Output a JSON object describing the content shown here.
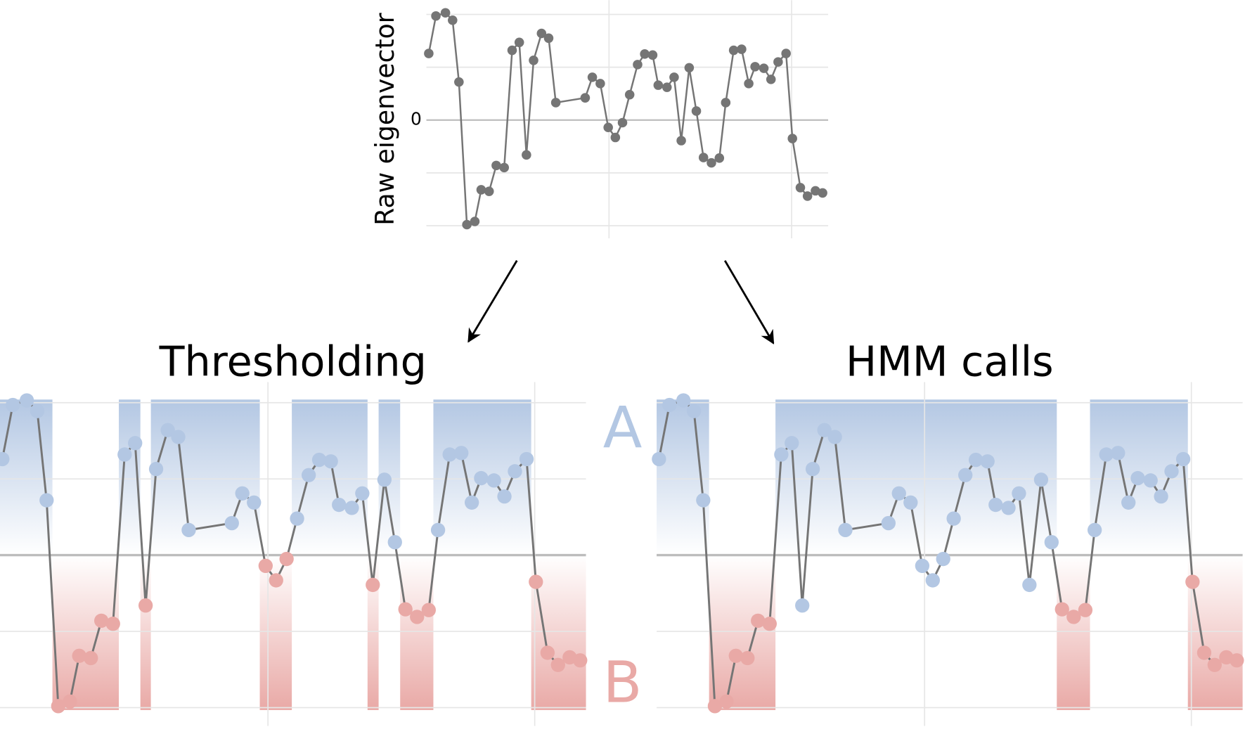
{
  "chart_data": [
    {
      "type": "line",
      "y_label": "Raw eigenvector",
      "color": "#757575",
      "x": [
        0.3,
        1.2,
        2.4,
        3.3,
        4.1,
        5.1,
        6.1,
        6.9,
        7.9,
        8.8,
        9.8,
        10.8,
        11.7,
        12.6,
        13.5,
        14.5,
        15.4,
        16.3,
        20,
        20.9,
        21.9,
        22.9,
        23.8,
        24.7,
        25.6,
        26.6,
        27.5,
        28.5,
        29.2,
        30.3,
        31.2,
        32.1,
        33.1,
        34,
        34.9,
        35.9,
        36.9,
        37.7,
        38.7,
        39.7,
        40.6,
        41.4,
        42.5,
        43.4,
        44.3,
        45.3,
        46.1,
        47.1,
        48,
        49,
        49.9
      ],
      "values": [
        1.26,
        1.97,
        2.03,
        1.89,
        0.72,
        -1.98,
        -1.92,
        -1.32,
        -1.35,
        -0.86,
        -0.9,
        1.32,
        1.47,
        -0.66,
        1.13,
        1.64,
        1.55,
        0.33,
        0.42,
        0.81,
        0.69,
        -0.14,
        -0.33,
        -0.05,
        0.48,
        1.05,
        1.25,
        1.23,
        0.66,
        0.62,
        0.81,
        -0.39,
        0.99,
        0.17,
        -0.71,
        -0.81,
        -0.72,
        0.33,
        1.32,
        1.34,
        0.69,
        1.01,
        0.98,
        0.77,
        1.1,
        1.26,
        -0.35,
        -1.28,
        -1.44,
        -1.34,
        -1.38
      ],
      "xlim": [
        0,
        50.6
      ],
      "ylim": [
        -2.24,
        2.27
      ],
      "yticks": [
        0
      ],
      "ygrid": [
        -2,
        -1,
        1,
        2
      ],
      "xgrid": [
        23,
        46
      ],
      "grid": true
    },
    {
      "type": "line",
      "title": "Thresholding",
      "color": "#757575",
      "legend": "right",
      "x": [
        0.3,
        1.2,
        2.4,
        3.3,
        4.1,
        5.1,
        6.1,
        6.9,
        7.9,
        8.8,
        9.8,
        10.8,
        11.7,
        12.6,
        13.5,
        14.5,
        15.4,
        16.3,
        20,
        20.9,
        21.9,
        22.9,
        23.8,
        24.7,
        25.6,
        26.6,
        27.5,
        28.5,
        29.2,
        30.3,
        31.2,
        32.1,
        33.1,
        34,
        34.9,
        35.9,
        36.9,
        37.7,
        38.7,
        39.7,
        40.6,
        41.4,
        42.5,
        43.4,
        44.3,
        45.3,
        46.1,
        47.1,
        48,
        49,
        49.9
      ],
      "values": [
        1.26,
        1.97,
        2.03,
        1.89,
        0.72,
        -1.98,
        -1.92,
        -1.32,
        -1.35,
        -0.86,
        -0.9,
        1.32,
        1.47,
        -0.66,
        1.13,
        1.64,
        1.55,
        0.33,
        0.42,
        0.81,
        0.69,
        -0.14,
        -0.33,
        -0.05,
        0.48,
        1.05,
        1.25,
        1.23,
        0.66,
        0.62,
        0.81,
        -0.39,
        0.99,
        0.17,
        -0.71,
        -0.81,
        -0.72,
        0.33,
        1.32,
        1.34,
        0.69,
        1.01,
        0.98,
        0.77,
        1.1,
        1.26,
        -0.35,
        -1.28,
        -1.44,
        -1.34,
        -1.38
      ],
      "series": [
        {
          "name": "A",
          "color": "#b3c7e3",
          "values": [
            1.26,
            1.97,
            2.03,
            1.89,
            0.72,
            null,
            null,
            null,
            null,
            null,
            null,
            1.32,
            1.47,
            null,
            1.13,
            1.64,
            1.55,
            0.33,
            0.42,
            0.81,
            0.69,
            null,
            null,
            null,
            0.48,
            1.05,
            1.25,
            1.23,
            0.66,
            0.62,
            0.81,
            null,
            0.99,
            0.17,
            null,
            null,
            null,
            0.33,
            1.32,
            1.34,
            0.69,
            1.01,
            0.98,
            0.77,
            1.1,
            1.26,
            null,
            null,
            null,
            null,
            null
          ]
        },
        {
          "name": "B",
          "color": "#e9a9a6",
          "values": [
            null,
            null,
            null,
            null,
            null,
            -1.98,
            -1.92,
            -1.32,
            -1.35,
            -0.86,
            -0.9,
            null,
            null,
            -0.66,
            null,
            null,
            null,
            null,
            null,
            null,
            null,
            -0.14,
            -0.33,
            -0.05,
            null,
            null,
            null,
            null,
            null,
            null,
            null,
            -0.39,
            null,
            null,
            -0.71,
            -0.81,
            -0.72,
            null,
            null,
            null,
            null,
            null,
            null,
            null,
            null,
            null,
            -0.35,
            -1.28,
            -1.44,
            -1.34,
            -1.38
          ]
        }
      ],
      "xlim": [
        0.1,
        50.4
      ],
      "ylim": [
        -2.24,
        2.27
      ],
      "ygrid": [
        -2,
        -1,
        0,
        1,
        2
      ],
      "xgrid": [
        23.1,
        46
      ],
      "grid": true
    },
    {
      "type": "line",
      "title": "HMM calls",
      "color": "#757575",
      "x": [
        0.3,
        1.2,
        2.4,
        3.3,
        4.1,
        5.1,
        6.1,
        6.9,
        7.9,
        8.8,
        9.8,
        10.8,
        11.7,
        12.6,
        13.5,
        14.5,
        15.4,
        16.3,
        20,
        20.9,
        21.9,
        22.9,
        23.8,
        24.7,
        25.6,
        26.6,
        27.5,
        28.5,
        29.2,
        30.3,
        31.2,
        32.1,
        33.1,
        34,
        34.9,
        35.9,
        36.9,
        37.7,
        38.7,
        39.7,
        40.6,
        41.4,
        42.5,
        43.4,
        44.3,
        45.3,
        46.1,
        47.1,
        48,
        49,
        49.9
      ],
      "values": [
        1.26,
        1.97,
        2.03,
        1.89,
        0.72,
        -1.98,
        -1.92,
        -1.32,
        -1.35,
        -0.86,
        -0.9,
        1.32,
        1.47,
        -0.66,
        1.13,
        1.64,
        1.55,
        0.33,
        0.42,
        0.81,
        0.69,
        -0.14,
        -0.33,
        -0.05,
        0.48,
        1.05,
        1.25,
        1.23,
        0.66,
        0.62,
        0.81,
        -0.39,
        0.99,
        0.17,
        -0.71,
        -0.81,
        -0.72,
        0.33,
        1.32,
        1.34,
        0.69,
        1.01,
        0.98,
        0.77,
        1.1,
        1.26,
        -0.35,
        -1.28,
        -1.44,
        -1.34,
        -1.38
      ],
      "series": [
        {
          "color": "#b3c7e3",
          "values": [
            1.26,
            1.97,
            2.03,
            1.89,
            0.72,
            null,
            null,
            null,
            null,
            null,
            null,
            1.32,
            1.47,
            -0.66,
            1.13,
            1.64,
            1.55,
            0.33,
            0.42,
            0.81,
            0.69,
            -0.14,
            -0.33,
            -0.05,
            0.48,
            1.05,
            1.25,
            1.23,
            0.66,
            0.62,
            0.81,
            -0.39,
            0.99,
            0.17,
            null,
            null,
            null,
            0.33,
            1.32,
            1.34,
            0.69,
            1.01,
            0.98,
            0.77,
            1.1,
            1.26,
            null,
            null,
            null,
            null,
            null
          ]
        },
        {
          "color": "#e9a9a6",
          "values": [
            null,
            null,
            null,
            null,
            null,
            -1.98,
            -1.92,
            -1.32,
            -1.35,
            -0.86,
            -0.9,
            null,
            null,
            null,
            null,
            null,
            null,
            null,
            null,
            null,
            null,
            null,
            null,
            null,
            null,
            null,
            null,
            null,
            null,
            null,
            null,
            null,
            null,
            null,
            -0.71,
            -0.81,
            -0.72,
            null,
            null,
            null,
            null,
            null,
            null,
            null,
            null,
            null,
            -0.35,
            -1.28,
            -1.44,
            -1.34,
            -1.38
          ]
        }
      ],
      "xlim": [
        0.1,
        50.4
      ],
      "ylim": [
        -2.24,
        2.27
      ],
      "ygrid": [
        -2,
        -1,
        0,
        1,
        2
      ],
      "xgrid": [
        23.1,
        46
      ],
      "grid": true
    }
  ]
}
